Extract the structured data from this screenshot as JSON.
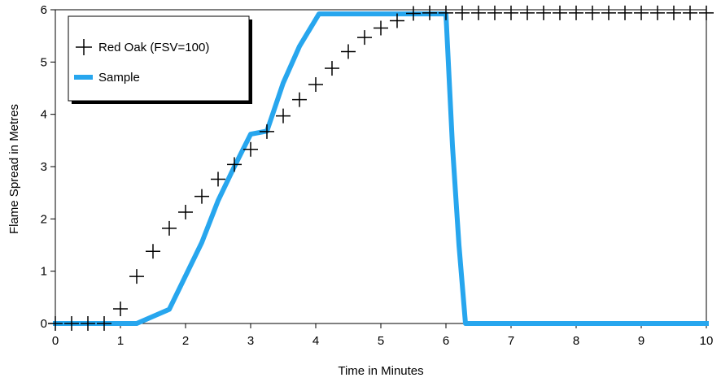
{
  "chart_data": {
    "type": "line",
    "title": "",
    "xlabel": "Time in Minutes",
    "ylabel": "Flame Spread in Metres",
    "xlim": [
      0,
      10
    ],
    "ylim": [
      0,
      6
    ],
    "x_ticks": [
      "0",
      "1",
      "2",
      "3",
      "4",
      "5",
      "6",
      "7",
      "8",
      "9",
      "10"
    ],
    "y_ticks": [
      "0",
      "1",
      "2",
      "3",
      "4",
      "5",
      "6"
    ],
    "grid": false,
    "legend_position": "top-left",
    "series": [
      {
        "name": "Red Oak (FSV=100)",
        "style": "markers",
        "marker": "plus",
        "color": "#000000",
        "x": [
          0,
          0.25,
          0.5,
          0.75,
          1.0,
          1.25,
          1.5,
          1.75,
          2.0,
          2.25,
          2.5,
          2.75,
          3.0,
          3.25,
          3.5,
          3.75,
          4.0,
          4.25,
          4.5,
          4.75,
          5.0,
          5.25,
          5.5,
          5.75,
          6.0,
          6.25,
          6.5,
          6.75,
          7.0,
          7.25,
          7.5,
          7.75,
          8.0,
          8.25,
          8.5,
          8.75,
          9.0,
          9.25,
          9.5,
          9.75,
          10.0
        ],
        "y": [
          0,
          0,
          0,
          0,
          0.28,
          0.9,
          1.38,
          1.82,
          2.13,
          2.43,
          2.76,
          3.04,
          3.33,
          3.67,
          3.97,
          4.28,
          4.57,
          4.88,
          5.2,
          5.47,
          5.65,
          5.79,
          5.93,
          5.94,
          5.94,
          5.94,
          5.94,
          5.94,
          5.94,
          5.94,
          5.94,
          5.94,
          5.94,
          5.94,
          5.94,
          5.94,
          5.94,
          5.94,
          5.94,
          5.94,
          5.94
        ]
      },
      {
        "name": "Sample",
        "style": "line",
        "color": "#27a6ee",
        "x": [
          0,
          1.25,
          1.75,
          2.25,
          2.5,
          2.75,
          3.0,
          3.25,
          3.5,
          3.75,
          4.05,
          5.5,
          6.0,
          6.1,
          6.2,
          6.3,
          10.0
        ],
        "y": [
          0,
          0,
          0.27,
          1.55,
          2.35,
          3.0,
          3.62,
          3.68,
          4.6,
          5.3,
          5.92,
          5.92,
          5.92,
          3.4,
          1.5,
          0,
          0
        ]
      }
    ]
  }
}
